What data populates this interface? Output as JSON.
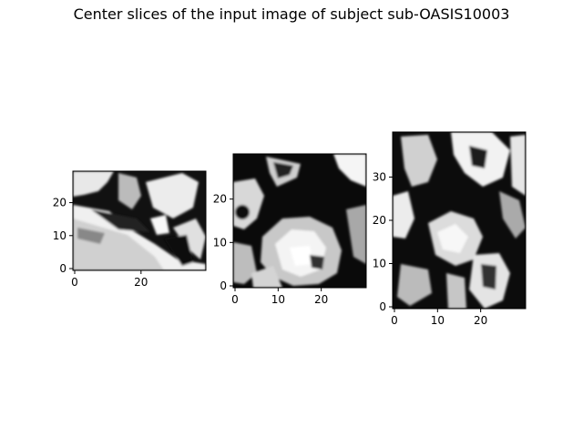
{
  "figure": {
    "title": "Center slices of the input image of subject sub-OASIS10003"
  },
  "panels": [
    {
      "id": "slice-1",
      "x_ticks": [
        "0",
        "20"
      ],
      "y_ticks": [
        "0",
        "10",
        "20"
      ],
      "x_range": [
        0,
        39
      ],
      "y_range": [
        0,
        29
      ]
    },
    {
      "id": "slice-2",
      "x_ticks": [
        "0",
        "10",
        "20"
      ],
      "y_ticks": [
        "0",
        "10",
        "20"
      ],
      "x_range": [
        0,
        30
      ],
      "y_range": [
        0,
        30
      ]
    },
    {
      "id": "slice-3",
      "x_ticks": [
        "0",
        "10",
        "20"
      ],
      "y_ticks": [
        "0",
        "10",
        "20",
        "30"
      ],
      "x_range": [
        0,
        30
      ],
      "y_range": [
        0,
        40
      ]
    }
  ],
  "colors": {
    "background": "#ffffff",
    "tissue_dark": "#000000",
    "tissue_light": "#ffffff"
  }
}
